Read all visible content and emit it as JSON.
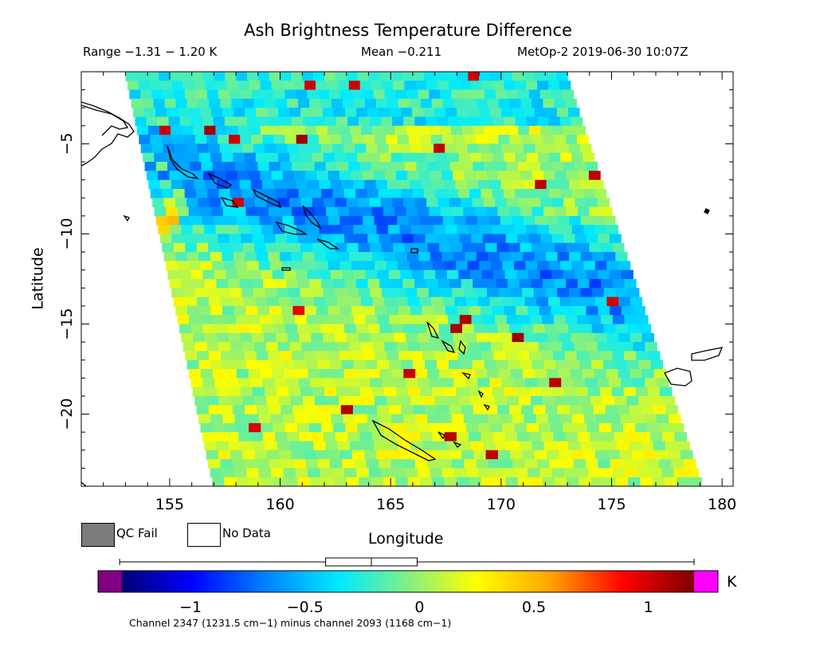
{
  "header": {
    "title": "Ash Brightness Temperature Difference",
    "range": "Range −1.31 − 1.20 K",
    "mean": "Mean −0.211",
    "satellite": "MetOp-2 2019-06-30 10:07Z"
  },
  "chart_data": {
    "type": "heatmap",
    "title": "Ash Brightness Temperature Difference",
    "xlabel": "Longitude",
    "ylabel": "Latitude",
    "xlim": [
      151,
      180.5
    ],
    "ylim": [
      -24,
      -1
    ],
    "xticks": [
      155,
      160,
      165,
      170,
      175,
      180
    ],
    "yticks": [
      -5,
      -10,
      -15,
      -20
    ],
    "grid": false,
    "value_range": [
      -1.31,
      1.2
    ],
    "mean": -0.211,
    "colorbar": {
      "min": -1.3,
      "max": 1.2,
      "ticks": [
        -1,
        -0.5,
        0,
        0.5,
        1
      ],
      "tick_labels": [
        "−1",
        "−0.5",
        "0",
        "0.5",
        "1"
      ],
      "unit": "K",
      "underflow_color": "#800080",
      "overflow_color": "#ff00ff",
      "boxplot": {
        "min": -1.31,
        "q1": -0.41,
        "median": -0.21,
        "q3": -0.01,
        "max": 1.2
      }
    },
    "swath": {
      "top_lon": [
        153.0,
        173.0
      ],
      "bottom_lon": [
        157.0,
        179.2
      ],
      "top_lat": -1.0,
      "bottom_lat": -24.0
    },
    "regions": [
      {
        "description": "blue band (ash-like negative BTD)",
        "lat_range": [
          -5,
          -16
        ],
        "approx_value": -0.6
      },
      {
        "description": "southern swath",
        "lat_range": [
          -14,
          -24
        ],
        "approx_value": 0.1
      },
      {
        "description": "northern swath",
        "lat_range": [
          -1,
          -6
        ],
        "approx_value": -0.3
      }
    ],
    "caption": "Channel 2347 (1231.5 cm−1) minus channel 2093 (1168 cm−1)"
  },
  "legend": {
    "qc_fail": "QC Fail",
    "no_data": "No Data",
    "qc_color": "#7b7b7b"
  }
}
